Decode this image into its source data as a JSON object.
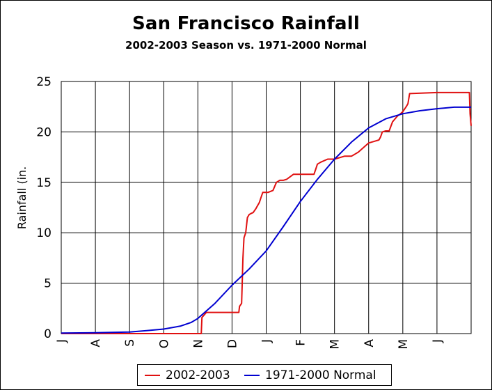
{
  "chart_data": {
    "type": "line",
    "title": "San Francisco Rainfall",
    "subtitle": "2002-2003 Season vs. 1971-2000 Normal",
    "ylabel": "Rainfall (in.",
    "xlabel": "",
    "ylim": [
      0,
      25
    ],
    "yticks": [
      "0",
      "5",
      "10",
      "15",
      "20",
      "25"
    ],
    "x_unit": "month",
    "xlim": [
      0,
      12
    ],
    "xticks": [
      "J",
      "A",
      "S",
      "O",
      "N",
      "D",
      "J",
      "F",
      "M",
      "A",
      "M",
      "J"
    ],
    "grid": true,
    "legend_position": "bottom",
    "series": [
      {
        "name": "2002-2003",
        "color": "#e01010",
        "x": [
          0,
          4.1,
          4.12,
          4.25,
          5.0,
          5.2,
          5.22,
          5.28,
          5.32,
          5.35,
          5.4,
          5.45,
          5.5,
          5.55,
          5.62,
          5.7,
          5.8,
          5.85,
          5.9,
          6.0,
          6.05,
          6.2,
          6.3,
          6.4,
          6.5,
          6.6,
          6.8,
          7.0,
          7.2,
          7.4,
          7.45,
          7.5,
          7.6,
          7.8,
          8.0,
          8.3,
          8.5,
          8.6,
          8.7,
          9.0,
          9.2,
          9.3,
          9.35,
          9.4,
          9.5,
          9.6,
          9.7,
          9.8,
          9.85,
          9.9,
          10.0,
          10.1,
          10.15,
          10.2,
          11.0,
          11.95,
          11.97,
          12.0
        ],
        "y": [
          0,
          0,
          1.6,
          2.1,
          2.1,
          2.1,
          2.7,
          3.0,
          7.5,
          9.5,
          10.0,
          11.5,
          11.8,
          11.9,
          12.0,
          12.4,
          13.0,
          13.5,
          14.0,
          14.0,
          14.0,
          14.2,
          15.0,
          15.2,
          15.2,
          15.3,
          15.8,
          15.8,
          15.8,
          15.8,
          16.3,
          16.8,
          17.0,
          17.3,
          17.3,
          17.6,
          17.6,
          17.8,
          18.0,
          18.9,
          19.1,
          19.2,
          19.5,
          20.0,
          20.1,
          20.1,
          21.0,
          21.4,
          21.6,
          21.7,
          22.0,
          22.5,
          22.8,
          23.8,
          23.9,
          23.9,
          21.8,
          20.6
        ]
      },
      {
        "name": "1971-2000 Normal",
        "color": "#0000d0",
        "x": [
          0,
          1.0,
          2.0,
          2.5,
          3.0,
          3.5,
          3.8,
          4.0,
          4.2,
          4.5,
          5.0,
          5.5,
          6.0,
          6.5,
          7.0,
          7.5,
          8.0,
          8.5,
          9.0,
          9.5,
          10.0,
          10.5,
          11.0,
          11.5,
          12.0
        ],
        "y": [
          0.05,
          0.08,
          0.15,
          0.3,
          0.45,
          0.75,
          1.1,
          1.5,
          2.1,
          3.0,
          4.8,
          6.4,
          8.2,
          10.6,
          13.1,
          15.3,
          17.3,
          19.0,
          20.4,
          21.3,
          21.8,
          22.1,
          22.3,
          22.45,
          22.45
        ]
      }
    ]
  }
}
